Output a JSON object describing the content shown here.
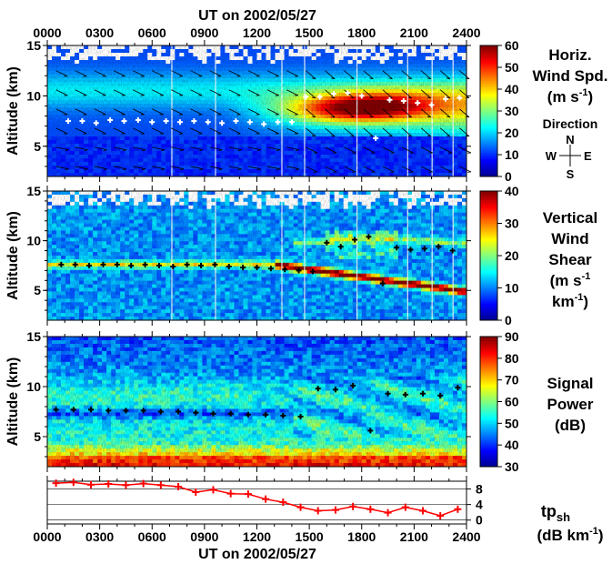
{
  "colors": {
    "colormap": [
      "#00008f",
      "#0000ff",
      "#0080ff",
      "#00ffff",
      "#80ff80",
      "#ffff00",
      "#ff8000",
      "#ff0000",
      "#800000"
    ],
    "frame": "#000000",
    "tp_line": "#ff0000"
  },
  "header": {
    "top_axis_title": "UT on 2002/05/27"
  },
  "footer": {
    "bottom_axis_title": "UT on 2002/05/27"
  },
  "chart_data": [
    {
      "type": "heatmap",
      "title": "Horiz. Wind Spd.",
      "ylabel": "Altitude (km)",
      "colorbar_label_lines": [
        "Horiz.",
        "Wind Spd.",
        "(m s-1)"
      ],
      "colorbar_ticks": [
        "0",
        "10",
        "20",
        "30",
        "40",
        "50",
        "60"
      ],
      "clim": [
        0,
        60
      ],
      "ylim": [
        2,
        15
      ],
      "y_ticks": [
        "5",
        "10",
        "15"
      ],
      "x_ticks": [
        "0000",
        "0300",
        "0600",
        "0900",
        "1200",
        "1500",
        "1800",
        "2100",
        "2400"
      ],
      "xlim": [
        0,
        24
      ],
      "compass": {
        "title": "Direction",
        "n": "N",
        "s": "S",
        "e": "E",
        "w": "W"
      },
      "tropopause_markers_hours": [
        1.2,
        2.0,
        2.8,
        3.6,
        4.4,
        5.2,
        6.0,
        6.8,
        7.6,
        8.4,
        9.2,
        10.0,
        10.8,
        11.6,
        12.4,
        13.2,
        14.0,
        14.8,
        15.6,
        16.4,
        17.2,
        18.0,
        18.8,
        19.6,
        20.4,
        21.2,
        22.0,
        22.8,
        23.6
      ],
      "tropopause_markers_km": [
        7.5,
        7.5,
        7.3,
        7.6,
        7.5,
        7.6,
        7.4,
        7.5,
        7.4,
        7.5,
        7.4,
        7.3,
        7.5,
        7.4,
        7.2,
        7.4,
        7.4,
        9.9,
        9.9,
        10.2,
        10.3,
        10.0,
        5.8,
        9.6,
        9.5,
        9.3,
        9.1,
        9.7,
        9.8
      ]
    },
    {
      "type": "heatmap",
      "title": "Vertical Wind Shear",
      "ylabel": "Altitude (km)",
      "colorbar_label_lines": [
        "Vertical",
        "Wind",
        "Shear",
        "(m s-1",
        "km-1)"
      ],
      "colorbar_ticks": [
        "0",
        "10",
        "20",
        "30",
        "40"
      ],
      "clim": [
        0,
        40
      ],
      "ylim": [
        2,
        15
      ],
      "y_ticks": [
        "5",
        "10",
        "15"
      ],
      "xlim": [
        0,
        24
      ],
      "tropopause_markers_hours": [
        0.8,
        1.6,
        2.4,
        3.2,
        4.0,
        4.8,
        5.6,
        6.4,
        7.2,
        8.0,
        8.8,
        9.6,
        10.4,
        11.2,
        12.0,
        12.8,
        13.6,
        14.4,
        15.2,
        16.0,
        16.8,
        17.6,
        18.4,
        19.2,
        20.0,
        20.8,
        21.6,
        22.4,
        23.2
      ],
      "tropopause_markers_km": [
        7.6,
        7.6,
        7.5,
        7.6,
        7.6,
        7.5,
        7.6,
        7.5,
        7.4,
        7.6,
        7.5,
        7.6,
        7.4,
        7.3,
        7.3,
        7.2,
        7.1,
        7.0,
        6.9,
        9.8,
        9.4,
        10.1,
        10.4,
        5.7,
        9.3,
        9.1,
        9.2,
        9.4,
        9.0
      ]
    },
    {
      "type": "heatmap",
      "title": "Signal Power",
      "ylabel": "Altitude (km)",
      "colorbar_label_lines": [
        "Signal",
        "Power",
        "(dB)"
      ],
      "colorbar_ticks": [
        "30",
        "40",
        "50",
        "60",
        "70",
        "80",
        "90"
      ],
      "clim": [
        30,
        90
      ],
      "ylim": [
        2,
        15
      ],
      "y_ticks": [
        "5",
        "10",
        "15"
      ],
      "xlim": [
        0,
        24
      ],
      "tropopause_markers_hours": [
        0.5,
        1.5,
        2.5,
        3.5,
        4.5,
        5.5,
        6.5,
        7.5,
        8.5,
        9.5,
        10.5,
        11.5,
        12.5,
        13.5,
        14.5,
        15.5,
        16.5,
        17.5,
        18.5,
        19.5,
        20.5,
        21.5,
        22.5,
        23.5
      ],
      "tropopause_markers_km": [
        7.7,
        7.7,
        7.7,
        7.6,
        7.6,
        7.6,
        7.5,
        7.5,
        7.4,
        7.3,
        7.3,
        7.2,
        7.2,
        7.1,
        7.0,
        9.8,
        9.7,
        10.1,
        5.6,
        9.3,
        9.2,
        9.3,
        9.1,
        9.9
      ]
    },
    {
      "type": "line",
      "title": "tp_sh",
      "ylabel_lines": [
        "tp",
        "sh",
        "(dB km",
        "-1",
        ")"
      ],
      "ylim": [
        -1,
        10
      ],
      "y_ticks": [
        "0",
        "4",
        "8"
      ],
      "y_tick_values": [
        0,
        4,
        8
      ],
      "x_ticks": [
        "0000",
        "0300",
        "0600",
        "0900",
        "1200",
        "1500",
        "1800",
        "2100",
        "2400"
      ],
      "xlim": [
        0,
        24
      ],
      "x": [
        0.5,
        1.5,
        2.5,
        3.5,
        4.5,
        5.5,
        6.5,
        7.5,
        8.5,
        9.5,
        10.5,
        11.5,
        12.5,
        13.5,
        14.5,
        15.5,
        16.5,
        17.5,
        18.5,
        19.5,
        20.5,
        21.5,
        22.5,
        23.5
      ],
      "series": [
        {
          "values": [
            9.5,
            9.7,
            9.1,
            9.3,
            9.0,
            9.4,
            9.0,
            8.6,
            7.2,
            7.8,
            6.8,
            6.7,
            5.4,
            4.6,
            3.3,
            2.4,
            2.6,
            3.5,
            2.8,
            1.9,
            3.3,
            2.4,
            1.1,
            2.8
          ]
        }
      ]
    }
  ]
}
